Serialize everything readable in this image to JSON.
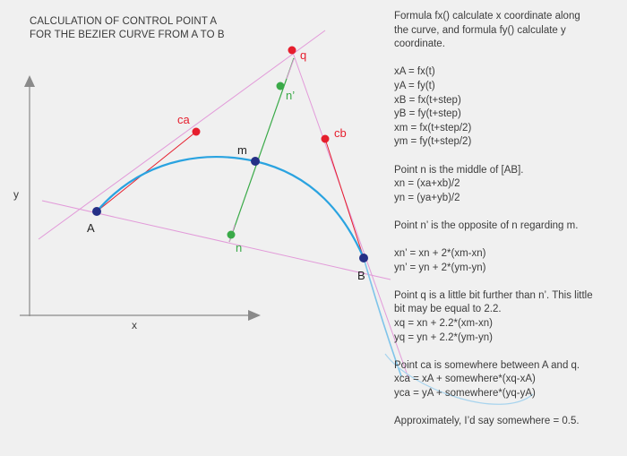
{
  "title": {
    "line1": "CALCULATION OF CONTROL POINT A",
    "line2": "FOR THE BEZIER CURVE FROM A TO B"
  },
  "axes": {
    "x_label": "x",
    "y_label": "y"
  },
  "points": {
    "A": "A",
    "B": "B",
    "m": "m",
    "n": "n",
    "n_prime": "n’",
    "q": "q",
    "ca": "ca",
    "cb": "cb"
  },
  "colors": {
    "background": "#f0f0f0",
    "curve": "#2aa3e0",
    "pink_line": "#e29ad9",
    "green": "#3aaa48",
    "red": "#e61e2d",
    "navy": "#252f86",
    "axis": "#8a8a8a",
    "text": "#3c3c3c"
  },
  "explanation": [
    [
      "Formula fx() calculate x coordinate along",
      "the curve, and formula fy() calculate y",
      "coordinate."
    ],
    [
      "xA = fx(t)",
      "yA = fy(t)",
      "xB = fx(t+step)",
      "yB = fy(t+step)",
      "xm = fx(t+step/2)",
      "ym = fy(t+step/2)"
    ],
    [
      "Point n is the middle of [AB].",
      "xn = (xa+xb)/2",
      "yn = (ya+yb)/2"
    ],
    [
      "Point n’ is the opposite of n regarding m."
    ],
    [
      "xn’ = xn + 2*(xm-xn)",
      "yn’ = yn + 2*(ym-yn)"
    ],
    [
      "Point q is a little bit further than n’. This little",
      "bit may be equal to 2.2.",
      "xq = xn + 2.2*(xm-xn)",
      "yq = yn + 2.2*(ym-yn)"
    ],
    [
      "Point ca is somewhere between A and q.",
      "xca = xA + somewhere*(xq-xA)",
      "yca = yA + somewhere*(yq-yA)"
    ],
    [
      "Approximately, I’d say somewhere = 0.5."
    ]
  ]
}
